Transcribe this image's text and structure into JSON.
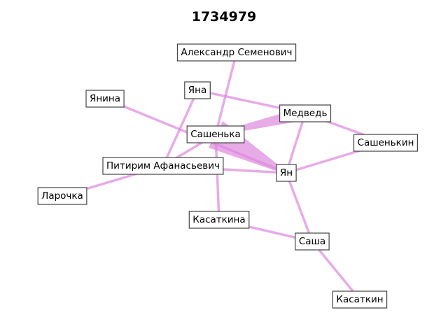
{
  "title": "1734979",
  "edge_color": "#dd88dd",
  "nodes": [
    {
      "id": "alexander",
      "label": "Александр Семенович"
    },
    {
      "id": "yana",
      "label": "Яна"
    },
    {
      "id": "yanina",
      "label": "Янина"
    },
    {
      "id": "medved",
      "label": "Медведь"
    },
    {
      "id": "sashenka",
      "label": "Сашенька"
    },
    {
      "id": "sashenkin",
      "label": "Сашенькин"
    },
    {
      "id": "pitirim",
      "label": "Питирим Афанасьевич"
    },
    {
      "id": "yan",
      "label": "Ян"
    },
    {
      "id": "larochka",
      "label": "Ларочка"
    },
    {
      "id": "kasatkina",
      "label": "Касаткина"
    },
    {
      "id": "sasha",
      "label": "Саша"
    },
    {
      "id": "kasatkin",
      "label": "Касаткин"
    }
  ],
  "edges": [
    {
      "source": "alexander",
      "target": "sashenka",
      "weight": 1
    },
    {
      "source": "yana",
      "target": "medved",
      "weight": 1
    },
    {
      "source": "yana",
      "target": "pitirim",
      "weight": 1
    },
    {
      "source": "yanina",
      "target": "yan",
      "weight": 1
    },
    {
      "source": "medved",
      "target": "sashenka",
      "weight": 4
    },
    {
      "source": "medved",
      "target": "sashenkin",
      "weight": 1
    },
    {
      "source": "medved",
      "target": "yan",
      "weight": 1
    },
    {
      "source": "sashenka",
      "target": "yan",
      "weight": 9
    },
    {
      "source": "sashenka",
      "target": "pitirim",
      "weight": 1
    },
    {
      "source": "sashenka",
      "target": "kasatkina",
      "weight": 1
    },
    {
      "source": "sashenkin",
      "target": "yan",
      "weight": 1
    },
    {
      "source": "pitirim",
      "target": "yan",
      "weight": 1
    },
    {
      "source": "pitirim",
      "target": "larochka",
      "weight": 1
    },
    {
      "source": "yan",
      "target": "sasha",
      "weight": 1
    },
    {
      "source": "kasatkina",
      "target": "sasha",
      "weight": 1
    },
    {
      "source": "sasha",
      "target": "kasatkin",
      "weight": 1
    }
  ]
}
